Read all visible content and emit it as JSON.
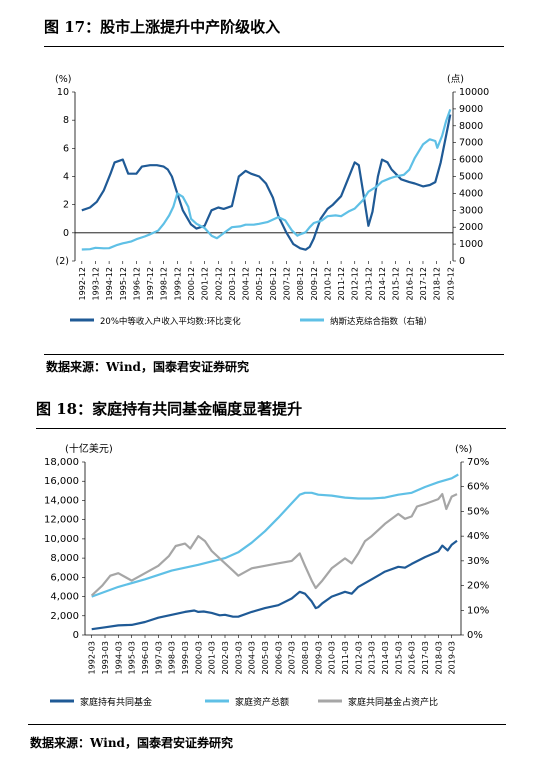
{
  "figure17": {
    "title": "图 17：股市上涨提升中产阶级收入",
    "source": "数据来源：Wind，国泰君安证券研究"
  },
  "figure18": {
    "title": "图 18：家庭持有共同基金幅度显著提升",
    "source": "数据来源：Wind，国泰君安证券研究"
  },
  "chart_data": [
    {
      "type": "line",
      "title": "图 17：股市上涨提升中产阶级收入",
      "y_left_unit": "(%)",
      "y_right_unit": "(点)",
      "ylim_left": [
        -2,
        10
      ],
      "ylim_right": [
        0,
        10000
      ],
      "yticks_left": [
        "10",
        "8",
        "6",
        "4",
        "2",
        "0",
        "(2)"
      ],
      "yticks_right": [
        "10000",
        "9000",
        "8000",
        "7000",
        "6000",
        "5000",
        "4000",
        "3000",
        "2000",
        "1000",
        "0"
      ],
      "x_ticks": [
        "1992-12",
        "1993-12",
        "1994-12",
        "1995-12",
        "1996-12",
        "1997-12",
        "1998-12",
        "1999-12",
        "2000-12",
        "2001-12",
        "2002-12",
        "2003-12",
        "2004-12",
        "2005-12",
        "2006-12",
        "2007-12",
        "2008-12",
        "2009-12",
        "2010-12",
        "2011-12",
        "2012-12",
        "2013-12",
        "2014-12",
        "2015-12",
        "2016-12",
        "2017-12",
        "2018-12",
        "2019-12"
      ],
      "grid": false,
      "legend_position": "bottom",
      "series": [
        {
          "name": "20%中等收入户收入平均数:环比变化",
          "axis": "left",
          "color": "#1f5a96",
          "x": [
            1992.9,
            1993.5,
            1994.0,
            1994.5,
            1995.0,
            1995.3,
            1995.9,
            1996.3,
            1996.9,
            1997.3,
            1997.9,
            1998.4,
            1998.9,
            1999.2,
            1999.5,
            1999.9,
            2000.3,
            2000.9,
            2001.3,
            2001.9,
            2002.4,
            2002.9,
            2003.3,
            2003.9,
            2004.4,
            2004.9,
            2005.3,
            2005.9,
            2006.4,
            2006.9,
            2007.3,
            2007.9,
            2008.4,
            2008.9,
            2009.3,
            2009.6,
            2009.9,
            2010.4,
            2010.9,
            2011.3,
            2011.9,
            2012.4,
            2012.9,
            2013.2,
            2013.5,
            2013.9,
            2014.2,
            2014.6,
            2014.9,
            2015.3,
            2015.6,
            2015.9,
            2016.3,
            2016.9,
            2017.3,
            2017.9,
            2018.4,
            2018.8,
            2019.2,
            2019.7,
            2019.9
          ],
          "y": [
            1.6,
            1.8,
            2.2,
            3.0,
            4.2,
            5.0,
            5.2,
            4.2,
            4.2,
            4.7,
            4.8,
            4.8,
            4.7,
            4.5,
            4.0,
            2.8,
            1.6,
            0.6,
            0.3,
            0.5,
            1.6,
            1.8,
            1.7,
            1.9,
            4.0,
            4.4,
            4.2,
            4.0,
            3.5,
            2.5,
            1.2,
            0.0,
            -0.8,
            -1.1,
            -1.2,
            -1.0,
            -0.4,
            1.0,
            1.7,
            2.0,
            2.6,
            3.8,
            5.0,
            4.8,
            3.0,
            0.5,
            1.5,
            4.0,
            5.2,
            5.0,
            4.5,
            4.2,
            3.8,
            3.6,
            3.5,
            3.3,
            3.4,
            3.6,
            5.0,
            7.4,
            8.4
          ]
        },
        {
          "name": "纳斯达克综合指数（右轴）",
          "axis": "right",
          "color": "#5fc0e6",
          "x": [
            1992.9,
            1993.5,
            1993.9,
            1994.5,
            1994.9,
            1995.5,
            1995.9,
            1996.5,
            1996.9,
            1997.5,
            1997.9,
            1998.5,
            1998.9,
            1999.3,
            1999.6,
            1999.9,
            2000.3,
            2000.7,
            2000.9,
            2001.3,
            2001.9,
            2002.4,
            2002.8,
            2003.3,
            2003.9,
            2004.5,
            2004.9,
            2005.5,
            2005.9,
            2006.5,
            2006.9,
            2007.3,
            2007.8,
            2008.3,
            2008.7,
            2008.9,
            2009.3,
            2009.6,
            2009.9,
            2010.5,
            2010.9,
            2011.5,
            2011.9,
            2012.5,
            2012.9,
            2013.5,
            2013.9,
            2014.5,
            2014.9,
            2015.5,
            2015.9,
            2016.5,
            2016.9,
            2017.3,
            2017.9,
            2018.4,
            2018.8,
            2018.95,
            2019.3,
            2019.6,
            2019.9
          ],
          "y": [
            680,
            700,
            780,
            750,
            760,
            950,
            1050,
            1150,
            1290,
            1450,
            1580,
            1800,
            2200,
            2700,
            3200,
            4000,
            3800,
            3200,
            2500,
            2200,
            1950,
            1500,
            1350,
            1650,
            2000,
            2050,
            2150,
            2150,
            2200,
            2300,
            2450,
            2600,
            2400,
            1800,
            1500,
            1580,
            1700,
            2000,
            2250,
            2400,
            2650,
            2700,
            2650,
            2950,
            3100,
            3600,
            4100,
            4400,
            4700,
            4900,
            5000,
            5100,
            5400,
            6100,
            6900,
            7200,
            7100,
            6700,
            7400,
            8300,
            8970
          ]
        }
      ]
    },
    {
      "type": "line",
      "title": "图 18：家庭持有共同基金幅度显著提升",
      "y_left_unit": "(十亿美元)",
      "y_right_unit": "(%)",
      "ylim_left": [
        0,
        18000
      ],
      "ylim_right": [
        0,
        70
      ],
      "yticks_left": [
        "18,000",
        "16,000",
        "14,000",
        "12,000",
        "10,000",
        "8,000",
        "6,000",
        "4,000",
        "2,000",
        "0"
      ],
      "yticks_right": [
        "70%",
        "60%",
        "50%",
        "40%",
        "30%",
        "20%",
        "10%",
        "0%"
      ],
      "x_ticks": [
        "1992-03",
        "1993-03",
        "1994-03",
        "1995-03",
        "1996-03",
        "1997-03",
        "1998-03",
        "1999-03",
        "2000-03",
        "2001-03",
        "2002-03",
        "2003-03",
        "2004-03",
        "2005-03",
        "2006-03",
        "2007-03",
        "2008-03",
        "2009-03",
        "2010-03",
        "2011-03",
        "2012-03",
        "2013-03",
        "2014-03",
        "2015-03",
        "2016-03",
        "2017-03",
        "2018-03",
        "2019-03"
      ],
      "grid": false,
      "legend_position": "bottom",
      "series": [
        {
          "name": "家庭持有共同基金",
          "axis": "left",
          "color": "#1f5a96",
          "x": [
            1992.2,
            1993.2,
            1994.2,
            1995.2,
            1996.2,
            1997.2,
            1998.2,
            1999.2,
            1999.9,
            2000.2,
            2000.6,
            2001.2,
            2001.8,
            2002.2,
            2002.8,
            2003.2,
            2004.2,
            2005.2,
            2006.2,
            2007.2,
            2007.8,
            2008.2,
            2008.7,
            2009.0,
            2009.2,
            2009.5,
            2010.2,
            2011.2,
            2011.7,
            2012.2,
            2013.2,
            2014.2,
            2015.2,
            2015.7,
            2016.2,
            2017.2,
            2018.2,
            2018.5,
            2018.9,
            2019.2,
            2019.6
          ],
          "y": [
            600,
            800,
            1000,
            1050,
            1350,
            1800,
            2100,
            2400,
            2550,
            2400,
            2450,
            2300,
            2050,
            2100,
            1900,
            1900,
            2400,
            2800,
            3100,
            3800,
            4500,
            4300,
            3500,
            2800,
            2900,
            3300,
            4000,
            4500,
            4300,
            5000,
            5800,
            6600,
            7100,
            7000,
            7400,
            8100,
            8700,
            9300,
            8800,
            9400,
            9800
          ]
        },
        {
          "name": "家庭资产总额",
          "axis": "left",
          "color": "#5fc0e6",
          "x": [
            1992.2,
            1994.2,
            1996.2,
            1998.2,
            2000.2,
            2002.2,
            2003.2,
            2004.2,
            2005.2,
            2006.2,
            2007.2,
            2007.8,
            2008.2,
            2008.7,
            2009.2,
            2010.2,
            2011.2,
            2012.2,
            2013.2,
            2014.2,
            2015.2,
            2016.2,
            2017.2,
            2018.2,
            2019.2,
            2019.7
          ],
          "y": [
            4000,
            5000,
            5800,
            6700,
            7300,
            8000,
            8600,
            9600,
            10800,
            12200,
            13700,
            14600,
            14800,
            14800,
            14600,
            14500,
            14300,
            14200,
            14200,
            14300,
            14600,
            14800,
            15400,
            15900,
            16300,
            16700
          ]
        },
        {
          "name": "家庭共同基金占资产比",
          "axis": "right",
          "color": "#a6a6a6",
          "x": [
            1992.2,
            1993.0,
            1993.6,
            1994.2,
            1995.2,
            1996.2,
            1997.2,
            1998.0,
            1998.5,
            1999.2,
            1999.6,
            2000.2,
            2000.7,
            2001.2,
            2001.8,
            2002.2,
            2002.8,
            2003.2,
            2004.2,
            2005.2,
            2006.2,
            2007.2,
            2007.8,
            2008.2,
            2008.7,
            2009.0,
            2009.5,
            2010.2,
            2011.2,
            2011.7,
            2012.2,
            2012.7,
            2013.2,
            2014.2,
            2015.2,
            2015.7,
            2016.2,
            2016.6,
            2017.2,
            2018.2,
            2018.5,
            2018.8,
            2019.2,
            2019.6
          ],
          "y": [
            16,
            20,
            24,
            25,
            22,
            25,
            28,
            32,
            36,
            37,
            35,
            40,
            38,
            34,
            31,
            29,
            26,
            24,
            27,
            28,
            29,
            30,
            33,
            28,
            22,
            19,
            22,
            27,
            31,
            29,
            33,
            38,
            40,
            45,
            49,
            47,
            48,
            52,
            53,
            55,
            57,
            51,
            56,
            57
          ]
        }
      ]
    }
  ]
}
